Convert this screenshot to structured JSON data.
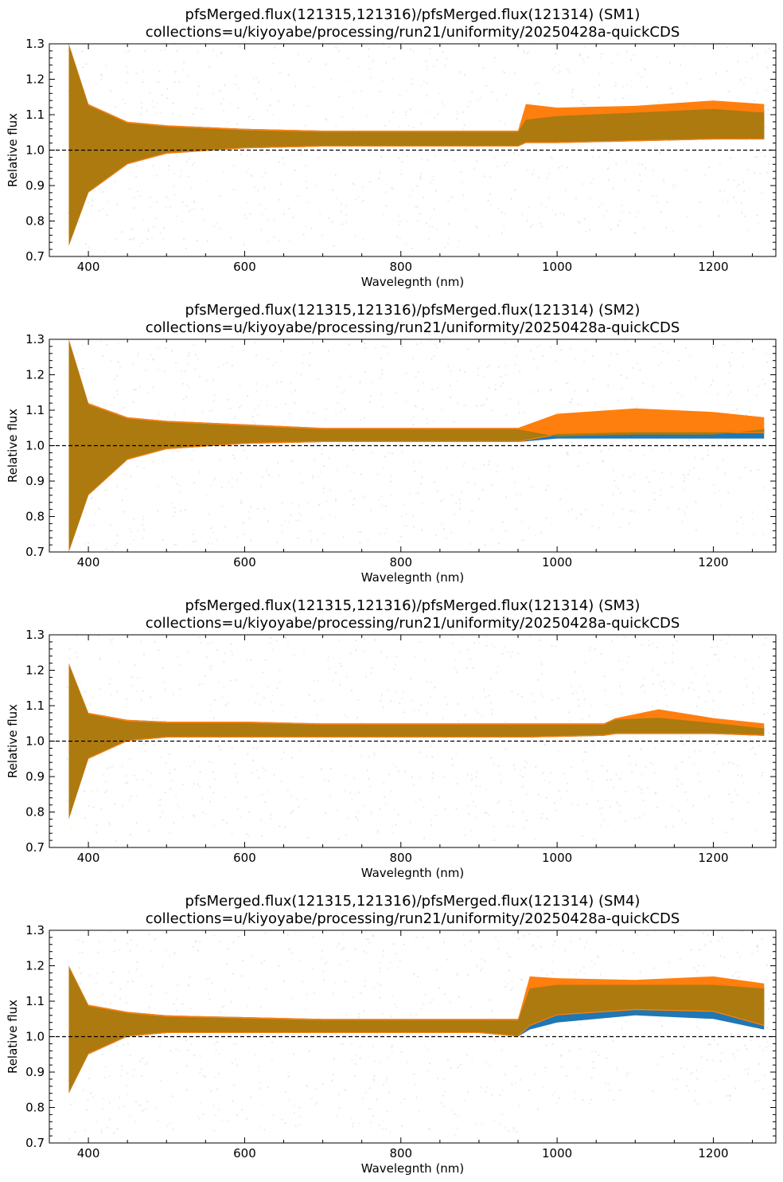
{
  "chart_data": [
    {
      "type": "area",
      "title": "pfsMerged.flux(121315,121316)/pfsMerged.flux(121314) (SM1)",
      "subtitle": "collections=u/kiyoyabe/processing/run21/uniformity/20250428a-quickCDS",
      "xlabel": "Wavelegnth (nm)",
      "ylabel": "Relative flux",
      "xlim": [
        350,
        1280
      ],
      "ylim": [
        0.7,
        1.3
      ],
      "xticks": [
        "400",
        "600",
        "800",
        "1000",
        "1200"
      ],
      "yticks": [
        "0.7",
        "0.8",
        "0.9",
        "1.0",
        "1.1",
        "1.2",
        "1.3"
      ],
      "reference_line": 1.0,
      "grid": false,
      "series": [
        {
          "color": "#1f77b4",
          "x": [
            375,
            400,
            450,
            500,
            600,
            700,
            800,
            900,
            950,
            960,
            1000,
            1100,
            1200,
            1265
          ],
          "upper": [
            1.3,
            1.13,
            1.08,
            1.07,
            1.06,
            1.055,
            1.055,
            1.055,
            1.055,
            1.09,
            1.1,
            1.11,
            1.12,
            1.11
          ],
          "lower": [
            0.73,
            0.88,
            0.96,
            0.99,
            1.005,
            1.01,
            1.01,
            1.01,
            1.01,
            1.02,
            1.02,
            1.025,
            1.03,
            1.03
          ]
        },
        {
          "color": "#ff7f0e",
          "x": [
            375,
            400,
            450,
            500,
            600,
            700,
            800,
            900,
            950,
            960,
            1000,
            1100,
            1200,
            1265
          ],
          "upper": [
            1.3,
            1.13,
            1.08,
            1.07,
            1.06,
            1.055,
            1.055,
            1.055,
            1.055,
            1.13,
            1.12,
            1.125,
            1.14,
            1.13
          ],
          "lower": [
            0.73,
            0.88,
            0.96,
            0.99,
            1.005,
            1.01,
            1.01,
            1.01,
            1.01,
            1.02,
            1.02,
            1.025,
            1.03,
            1.03
          ]
        }
      ]
    },
    {
      "type": "area",
      "title": "pfsMerged.flux(121315,121316)/pfsMerged.flux(121314) (SM2)",
      "subtitle": "collections=u/kiyoyabe/processing/run21/uniformity/20250428a-quickCDS",
      "xlabel": "Wavelegnth (nm)",
      "ylabel": "Relative flux",
      "xlim": [
        350,
        1280
      ],
      "ylim": [
        0.7,
        1.3
      ],
      "xticks": [
        "400",
        "600",
        "800",
        "1000",
        "1200"
      ],
      "yticks": [
        "0.7",
        "0.8",
        "0.9",
        "1.0",
        "1.1",
        "1.2",
        "1.3"
      ],
      "reference_line": 1.0,
      "grid": false,
      "series": [
        {
          "color": "#1f77b4",
          "x": [
            375,
            400,
            450,
            500,
            600,
            700,
            800,
            900,
            950,
            1000,
            1100,
            1200,
            1265
          ],
          "upper": [
            1.3,
            1.12,
            1.08,
            1.07,
            1.06,
            1.05,
            1.05,
            1.05,
            1.05,
            1.03,
            1.035,
            1.035,
            1.05
          ],
          "lower": [
            0.7,
            0.86,
            0.96,
            0.99,
            1.005,
            1.01,
            1.01,
            1.01,
            1.01,
            1.02,
            1.02,
            1.02,
            1.02
          ]
        },
        {
          "color": "#ff7f0e",
          "x": [
            375,
            400,
            450,
            500,
            600,
            700,
            800,
            900,
            950,
            1000,
            1100,
            1200,
            1265
          ],
          "upper": [
            1.3,
            1.12,
            1.08,
            1.07,
            1.06,
            1.05,
            1.05,
            1.05,
            1.05,
            1.09,
            1.105,
            1.095,
            1.08
          ],
          "lower": [
            0.7,
            0.86,
            0.96,
            0.99,
            1.005,
            1.01,
            1.01,
            1.01,
            1.01,
            1.03,
            1.035,
            1.035,
            1.035
          ]
        }
      ]
    },
    {
      "type": "area",
      "title": "pfsMerged.flux(121315,121316)/pfsMerged.flux(121314) (SM3)",
      "subtitle": "collections=u/kiyoyabe/processing/run21/uniformity/20250428a-quickCDS",
      "xlabel": "Wavelegnth (nm)",
      "ylabel": "Relative flux",
      "xlim": [
        350,
        1280
      ],
      "ylim": [
        0.7,
        1.3
      ],
      "xticks": [
        "400",
        "600",
        "800",
        "1000",
        "1200"
      ],
      "yticks": [
        "0.7",
        "0.8",
        "0.9",
        "1.0",
        "1.1",
        "1.2",
        "1.3"
      ],
      "reference_line": 1.0,
      "grid": false,
      "series": [
        {
          "color": "#1f77b4",
          "x": [
            375,
            400,
            450,
            500,
            600,
            700,
            800,
            900,
            960,
            1060,
            1075,
            1130,
            1200,
            1265
          ],
          "upper": [
            1.22,
            1.08,
            1.06,
            1.055,
            1.055,
            1.05,
            1.05,
            1.05,
            1.05,
            1.05,
            1.065,
            1.07,
            1.055,
            1.04
          ],
          "lower": [
            0.78,
            0.95,
            1.0,
            1.01,
            1.01,
            1.01,
            1.01,
            1.01,
            1.01,
            1.015,
            1.02,
            1.02,
            1.02,
            1.015
          ]
        },
        {
          "color": "#ff7f0e",
          "x": [
            375,
            400,
            450,
            500,
            600,
            700,
            800,
            900,
            960,
            1060,
            1075,
            1130,
            1200,
            1265
          ],
          "upper": [
            1.22,
            1.08,
            1.06,
            1.055,
            1.055,
            1.05,
            1.05,
            1.05,
            1.05,
            1.05,
            1.065,
            1.09,
            1.065,
            1.05
          ],
          "lower": [
            0.78,
            0.95,
            1.0,
            1.01,
            1.01,
            1.01,
            1.01,
            1.01,
            1.01,
            1.015,
            1.02,
            1.02,
            1.02,
            1.015
          ]
        }
      ]
    },
    {
      "type": "area",
      "title": "pfsMerged.flux(121315,121316)/pfsMerged.flux(121314) (SM4)",
      "subtitle": "collections=u/kiyoyabe/processing/run21/uniformity/20250428a-quickCDS",
      "xlabel": "Wavelegnth (nm)",
      "ylabel": "Relative flux",
      "xlim": [
        350,
        1280
      ],
      "ylim": [
        0.7,
        1.3
      ],
      "xticks": [
        "400",
        "600",
        "800",
        "1000",
        "1200"
      ],
      "yticks": [
        "0.7",
        "0.8",
        "0.9",
        "1.0",
        "1.1",
        "1.2",
        "1.3"
      ],
      "reference_line": 1.0,
      "grid": false,
      "series": [
        {
          "color": "#1f77b4",
          "x": [
            375,
            400,
            450,
            500,
            600,
            700,
            800,
            900,
            950,
            965,
            1000,
            1100,
            1200,
            1265
          ],
          "upper": [
            1.2,
            1.09,
            1.07,
            1.06,
            1.055,
            1.05,
            1.05,
            1.05,
            1.05,
            1.14,
            1.15,
            1.15,
            1.15,
            1.14
          ],
          "lower": [
            0.84,
            0.95,
            1.0,
            1.01,
            1.01,
            1.01,
            1.01,
            1.01,
            1.0,
            1.02,
            1.04,
            1.06,
            1.05,
            1.02
          ]
        },
        {
          "color": "#ff7f0e",
          "x": [
            375,
            400,
            450,
            500,
            600,
            700,
            800,
            900,
            950,
            965,
            1000,
            1100,
            1200,
            1265
          ],
          "upper": [
            1.2,
            1.09,
            1.07,
            1.06,
            1.055,
            1.05,
            1.05,
            1.05,
            1.05,
            1.17,
            1.165,
            1.16,
            1.17,
            1.15
          ],
          "lower": [
            0.84,
            0.95,
            1.0,
            1.01,
            1.01,
            1.01,
            1.01,
            1.01,
            1.0,
            1.03,
            1.06,
            1.075,
            1.07,
            1.03
          ]
        }
      ]
    }
  ]
}
